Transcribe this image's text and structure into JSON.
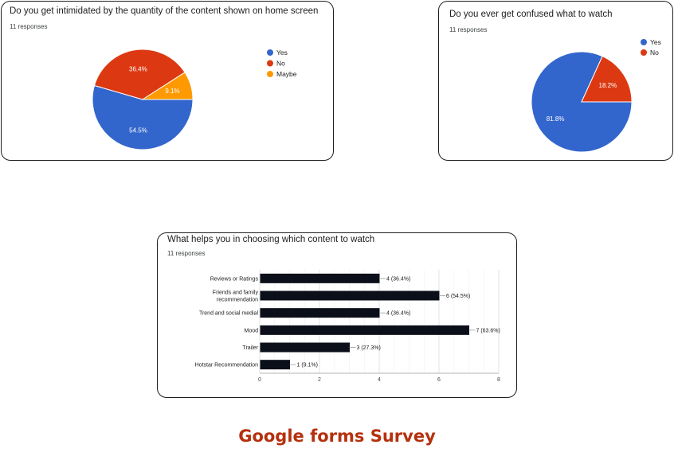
{
  "footer": {
    "title": "Google forms Survey"
  },
  "chart_data": [
    {
      "type": "pie",
      "title": "Do you get intimidated by the quantity of the content shown on home screen",
      "subtitle": "11 responses",
      "legend": "right",
      "labels": [
        "Yes",
        "No",
        "Maybe"
      ],
      "values": [
        54.5,
        36.4,
        9.1
      ],
      "value_labels": [
        "54.5%",
        "36.4%",
        "9.1%"
      ],
      "colors": [
        "#3366cc",
        "#dc3912",
        "#ff9900"
      ]
    },
    {
      "type": "pie",
      "title": "Do you ever get confused what to watch",
      "subtitle": "11 responses",
      "legend": "top-right",
      "labels": [
        "Yes",
        "No"
      ],
      "values": [
        81.8,
        18.2
      ],
      "value_labels": [
        "81.8%",
        "18.2%"
      ],
      "colors": [
        "#3366cc",
        "#dc3912"
      ]
    },
    {
      "type": "bar",
      "orientation": "horizontal",
      "title": "What helps you in choosing which content to watch",
      "subtitle": "11 responses",
      "categories": [
        [
          "Reviews or Ratings"
        ],
        [
          "Friends and family",
          "recommendation"
        ],
        [
          "Trend and social medial"
        ],
        [
          "Mood"
        ],
        [
          "Trailer"
        ],
        [
          "Hotstar Recommendation"
        ]
      ],
      "values": [
        4,
        6,
        4,
        7,
        3,
        1
      ],
      "value_labels": [
        "4 (36.4%)",
        "6 (54.5%)",
        "4 (36.4%)",
        "7 (63.6%)",
        "3 (27.3%)",
        "1 (9.1%)"
      ],
      "xlim": [
        0,
        8
      ],
      "xticks": [
        0,
        2,
        4,
        6,
        8
      ],
      "grid": true,
      "bar_color": "#0b0f1a"
    }
  ]
}
